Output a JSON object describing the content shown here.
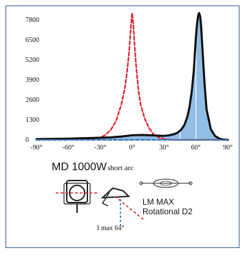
{
  "chart_data": {
    "type": "line",
    "title": "",
    "xlabel": "",
    "ylabel": "",
    "x_ticks": [
      "-90°",
      "-60°",
      "-30°",
      "0°",
      "30°",
      "60°",
      "90°"
    ],
    "y_ticks": [
      "0",
      "1300",
      "2600",
      "3900",
      "5200",
      "6500",
      "7800"
    ],
    "xlim": [
      -90,
      90
    ],
    "ylim": [
      0,
      7800
    ],
    "grid": false,
    "series": [
      {
        "style": "dashed",
        "color": "#e0202c",
        "x": [
          -90,
          -60,
          -45,
          -30,
          -25,
          -20,
          -15,
          -10,
          -7,
          -5,
          -3,
          -2,
          -1,
          0,
          1,
          2,
          4,
          6,
          8,
          12,
          16,
          20,
          25,
          30,
          35,
          40,
          50,
          60,
          90
        ],
        "y": [
          0,
          0,
          30,
          150,
          330,
          660,
          1250,
          2350,
          3300,
          4300,
          5600,
          6500,
          7500,
          8250,
          7600,
          6500,
          4600,
          3200,
          2300,
          1350,
          750,
          380,
          160,
          60,
          10,
          0,
          0,
          0,
          0
        ]
      },
      {
        "style": "solid",
        "color": "#0d0d0d",
        "fill": "#7fb2df",
        "x": [
          -90,
          -60,
          -40,
          -20,
          -10,
          0,
          10,
          20,
          30,
          35,
          40,
          43,
          46,
          49,
          52,
          54,
          56,
          58,
          59,
          60,
          61,
          62,
          63,
          64,
          65,
          66,
          68,
          70,
          74,
          78,
          82,
          86,
          90
        ],
        "y": [
          50,
          80,
          120,
          160,
          220,
          300,
          320,
          290,
          260,
          300,
          380,
          480,
          650,
          950,
          1500,
          2150,
          3100,
          4500,
          5600,
          6700,
          7500,
          8050,
          8250,
          8050,
          7300,
          6100,
          3800,
          2000,
          700,
          250,
          80,
          20,
          0
        ]
      },
      {
        "style": "dashed",
        "color": "#1e6fc8",
        "x": [
          -90,
          90
        ],
        "y": [
          0,
          0
        ]
      }
    ]
  },
  "labels": {
    "lamp_name": "MD 1000W",
    "arc_type": "short arc",
    "optic_line1": "LM MAX",
    "optic_line2": "Rotational D2",
    "imax": "I max 64°"
  },
  "colors": {
    "accent_red": "#e0202c",
    "accent_blue": "#1e6fc8",
    "fill_blue": "#7fb2df",
    "frame": "#3a5f97"
  }
}
